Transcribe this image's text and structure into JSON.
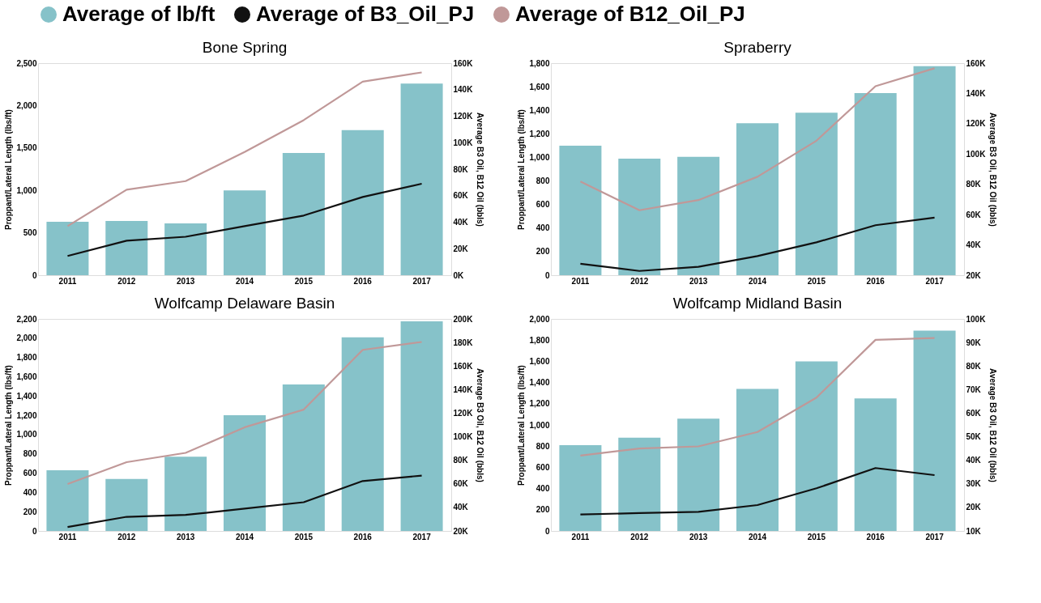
{
  "chart_data": [
    {
      "type": "bar",
      "title": "Bone Spring",
      "categories": [
        "2011",
        "2012",
        "2013",
        "2014",
        "2015",
        "2016",
        "2017"
      ],
      "ylabel": "Proppant/Lateral Length (lbs/ft)",
      "y2label": "Average B3 Oil, B12 Oil (bbls)",
      "ylim": [
        0,
        2500
      ],
      "yticks": [
        0,
        500,
        {
          "value": 1000,
          "label": "1,000"
        },
        {
          "value": 1500,
          "label": "1,500"
        },
        {
          "value": 2000,
          "label": "2,000"
        },
        {
          "value": 2500,
          "label": "2,500"
        }
      ],
      "y2lim": [
        0,
        160000
      ],
      "y2ticks": [
        {
          "value": 0,
          "label": "0K"
        },
        {
          "value": 20000,
          "label": "20K"
        },
        {
          "value": 40000,
          "label": "40K"
        },
        {
          "value": 60000,
          "label": "60K"
        },
        {
          "value": 80000,
          "label": "80K"
        },
        {
          "value": 100000,
          "label": "100K"
        },
        {
          "value": 120000,
          "label": "120K"
        },
        {
          "value": 140000,
          "label": "140K"
        },
        {
          "value": 160000,
          "label": "160K"
        }
      ],
      "legend": "top",
      "grid": false,
      "series": [
        {
          "name": "Average of lb/ft",
          "color": "#86c2c9",
          "values": [
            630,
            640,
            610,
            1000,
            1440,
            1710,
            2260
          ]
        },
        {
          "name": "Average of B3_Oil_PJ",
          "type": "line",
          "axis": "y2",
          "color": "#111111",
          "values": [
            14500,
            26000,
            29000,
            37000,
            45000,
            59000,
            69000
          ]
        },
        {
          "name": "Average of B12_Oil_PJ",
          "type": "line",
          "axis": "y2",
          "color": "#c09898",
          "values": [
            37000,
            64500,
            71000,
            93000,
            117000,
            146000,
            153000
          ]
        }
      ]
    },
    {
      "type": "bar",
      "title": "Spraberry",
      "categories": [
        "2011",
        "2012",
        "2013",
        "2014",
        "2015",
        "2016",
        "2017"
      ],
      "ylabel": "Proppant/Lateral Length (lbs/ft)",
      "y2label": "Average B3 Oil, B12 Oil (bbls)",
      "ylim": [
        0,
        1800
      ],
      "yticks": [
        0,
        200,
        400,
        600,
        800,
        {
          "value": 1000,
          "label": "1,000"
        },
        {
          "value": 1200,
          "label": "1,200"
        },
        {
          "value": 1400,
          "label": "1,400"
        },
        {
          "value": 1600,
          "label": "1,600"
        },
        {
          "value": 1800,
          "label": "1,800"
        }
      ],
      "y2lim": [
        20000,
        160000
      ],
      "y2ticks": [
        {
          "value": 20000,
          "label": "20K"
        },
        {
          "value": 40000,
          "label": "40K"
        },
        {
          "value": 60000,
          "label": "60K"
        },
        {
          "value": 80000,
          "label": "80K"
        },
        {
          "value": 100000,
          "label": "100K"
        },
        {
          "value": 120000,
          "label": "120K"
        },
        {
          "value": 140000,
          "label": "140K"
        },
        {
          "value": 160000,
          "label": "160K"
        }
      ],
      "grid": false,
      "series": [
        {
          "name": "Average of lb/ft",
          "color": "#86c2c9",
          "values": [
            1100,
            990,
            1005,
            1290,
            1380,
            1545,
            1775
          ]
        },
        {
          "name": "Average of B3_Oil_PJ",
          "type": "line",
          "axis": "y2",
          "color": "#111111",
          "values": [
            27500,
            22800,
            25500,
            32600,
            41700,
            53000,
            58000
          ]
        },
        {
          "name": "Average of B12_Oil_PJ",
          "type": "line",
          "axis": "y2",
          "color": "#c09898",
          "values": [
            81800,
            62900,
            69600,
            85000,
            108800,
            144800,
            156600
          ]
        }
      ]
    },
    {
      "type": "bar",
      "title": "Wolfcamp Delaware Basin",
      "categories": [
        "2011",
        "2012",
        "2013",
        "2014",
        "2015",
        "2016",
        "2017"
      ],
      "ylabel": "Proppant/Lateral Length (lbs/ft)",
      "y2label": "Average B3 Oil, B12 Oil (bbls)",
      "ylim": [
        0,
        2200
      ],
      "yticks": [
        0,
        200,
        400,
        600,
        800,
        {
          "value": 1000,
          "label": "1,000"
        },
        {
          "value": 1200,
          "label": "1,200"
        },
        {
          "value": 1400,
          "label": "1,400"
        },
        {
          "value": 1600,
          "label": "1,600"
        },
        {
          "value": 1800,
          "label": "1,800"
        },
        {
          "value": 2000,
          "label": "2,000"
        },
        {
          "value": 2200,
          "label": "2,200"
        }
      ],
      "y2lim": [
        20000,
        200000
      ],
      "y2ticks": [
        {
          "value": 20000,
          "label": "20K"
        },
        {
          "value": 40000,
          "label": "40K"
        },
        {
          "value": 60000,
          "label": "60K"
        },
        {
          "value": 80000,
          "label": "80K"
        },
        {
          "value": 100000,
          "label": "100K"
        },
        {
          "value": 120000,
          "label": "120K"
        },
        {
          "value": 140000,
          "label": "140K"
        },
        {
          "value": 160000,
          "label": "160K"
        },
        {
          "value": 180000,
          "label": "180K"
        },
        {
          "value": 200000,
          "label": "200K"
        }
      ],
      "grid": false,
      "series": [
        {
          "name": "Average of lb/ft",
          "color": "#86c2c9",
          "values": [
            630,
            540,
            770,
            1200,
            1520,
            2010,
            2175
          ]
        },
        {
          "name": "Average of B3_Oil_PJ",
          "type": "line",
          "axis": "y2",
          "color": "#111111",
          "values": [
            23300,
            32000,
            33600,
            39000,
            44400,
            62400,
            67000
          ]
        },
        {
          "name": "Average of B12_Oil_PJ",
          "type": "line",
          "axis": "y2",
          "color": "#c09898",
          "values": [
            59800,
            78400,
            86300,
            108000,
            123000,
            173700,
            180400
          ]
        }
      ]
    },
    {
      "type": "bar",
      "title": "Wolfcamp Midland Basin",
      "categories": [
        "2011",
        "2012",
        "2013",
        "2014",
        "2015",
        "2016",
        "2017"
      ],
      "ylabel": "Proppant/Lateral Length (lbs/ft)",
      "y2label": "Average B3 Oil, B12 Oil (bbls)",
      "ylim": [
        0,
        2000
      ],
      "yticks": [
        0,
        200,
        400,
        600,
        800,
        {
          "value": 1000,
          "label": "1,000"
        },
        {
          "value": 1200,
          "label": "1,200"
        },
        {
          "value": 1400,
          "label": "1,400"
        },
        {
          "value": 1600,
          "label": "1,600"
        },
        {
          "value": 1800,
          "label": "1,800"
        },
        {
          "value": 2000,
          "label": "2,000"
        }
      ],
      "y2lim": [
        10000,
        100000
      ],
      "y2ticks": [
        {
          "value": 10000,
          "label": "10K"
        },
        {
          "value": 20000,
          "label": "20K"
        },
        {
          "value": 30000,
          "label": "30K"
        },
        {
          "value": 40000,
          "label": "40K"
        },
        {
          "value": 50000,
          "label": "50K"
        },
        {
          "value": 60000,
          "label": "60K"
        },
        {
          "value": 70000,
          "label": "70K"
        },
        {
          "value": 80000,
          "label": "80K"
        },
        {
          "value": 90000,
          "label": "90K"
        },
        {
          "value": 100000,
          "label": "100K"
        }
      ],
      "grid": false,
      "series": [
        {
          "name": "Average of lb/ft",
          "color": "#86c2c9",
          "values": [
            810,
            880,
            1060,
            1340,
            1600,
            1250,
            1890
          ]
        },
        {
          "name": "Average of B3_Oil_PJ",
          "type": "line",
          "axis": "y2",
          "color": "#111111",
          "values": [
            17000,
            17600,
            18100,
            21000,
            28100,
            36700,
            33700
          ]
        },
        {
          "name": "Average of B12_Oil_PJ",
          "type": "line",
          "axis": "y2",
          "color": "#c09898",
          "values": [
            42000,
            45000,
            45900,
            52000,
            66600,
            91100,
            91900
          ]
        }
      ]
    }
  ]
}
